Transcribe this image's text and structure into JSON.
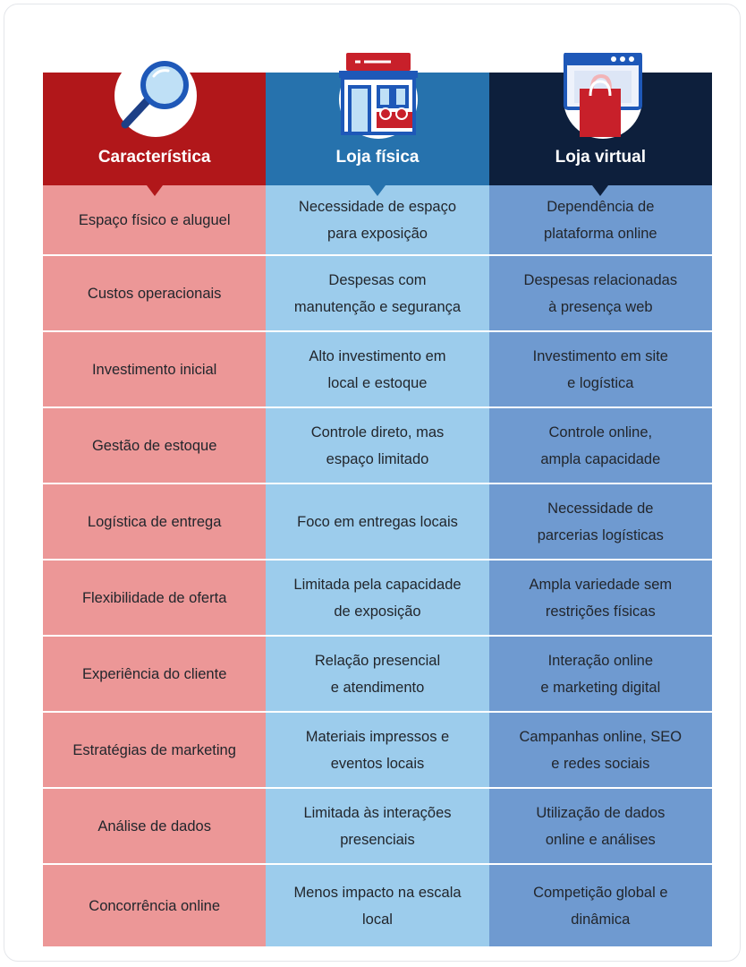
{
  "colors": {
    "header_caracteristica": "#b1171a",
    "header_loja_fisica": "#2672ad",
    "header_loja_virtual": "#0d1f3c",
    "col_caracteristica": "#ec9797",
    "col_loja_fisica": "#9cccec",
    "col_loja_virtual": "#6f9ad0"
  },
  "headers": [
    {
      "label": "Característica",
      "icon": "magnifier-icon"
    },
    {
      "label": "Loja física",
      "icon": "storefront-icon"
    },
    {
      "label": "Loja virtual",
      "icon": "browser-shopping-bag-icon"
    }
  ],
  "rows": [
    {
      "c1": "Espaço físico e aluguel",
      "c2": "Necessidade de espaço\npara exposição",
      "c3": "Dependência de\nplataforma online"
    },
    {
      "c1": "Custos operacionais",
      "c2": "Despesas com\nmanutenção e segurança",
      "c3": "Despesas relacionadas\nà presença web"
    },
    {
      "c1": "Investimento inicial",
      "c2": "Alto investimento em\nlocal e estoque",
      "c3": "Investimento em site\ne logística"
    },
    {
      "c1": "Gestão de estoque",
      "c2": "Controle direto, mas\nespaço limitado",
      "c3": "Controle online,\nampla capacidade"
    },
    {
      "c1": "Logística de entrega",
      "c2": "Foco em entregas locais",
      "c3": "Necessidade de\nparcerias logísticas"
    },
    {
      "c1": "Flexibilidade de oferta",
      "c2": "Limitada pela capacidade\nde exposição",
      "c3": "Ampla variedade sem\nrestrições físicas"
    },
    {
      "c1": "Experiência do cliente",
      "c2": "Relação presencial\ne atendimento",
      "c3": "Interação online\ne marketing digital"
    },
    {
      "c1": "Estratégias de marketing",
      "c2": "Materiais impressos e\neventos locais",
      "c3": "Campanhas online, SEO\ne redes sociais"
    },
    {
      "c1": "Análise de dados",
      "c2": "Limitada às interações\npresenciais",
      "c3": "Utilização de dados\nonline e análises"
    },
    {
      "c1": "Concorrência online",
      "c2": "Menos impacto na escala\nlocal",
      "c3": "Competição global e\ndinâmica"
    }
  ]
}
